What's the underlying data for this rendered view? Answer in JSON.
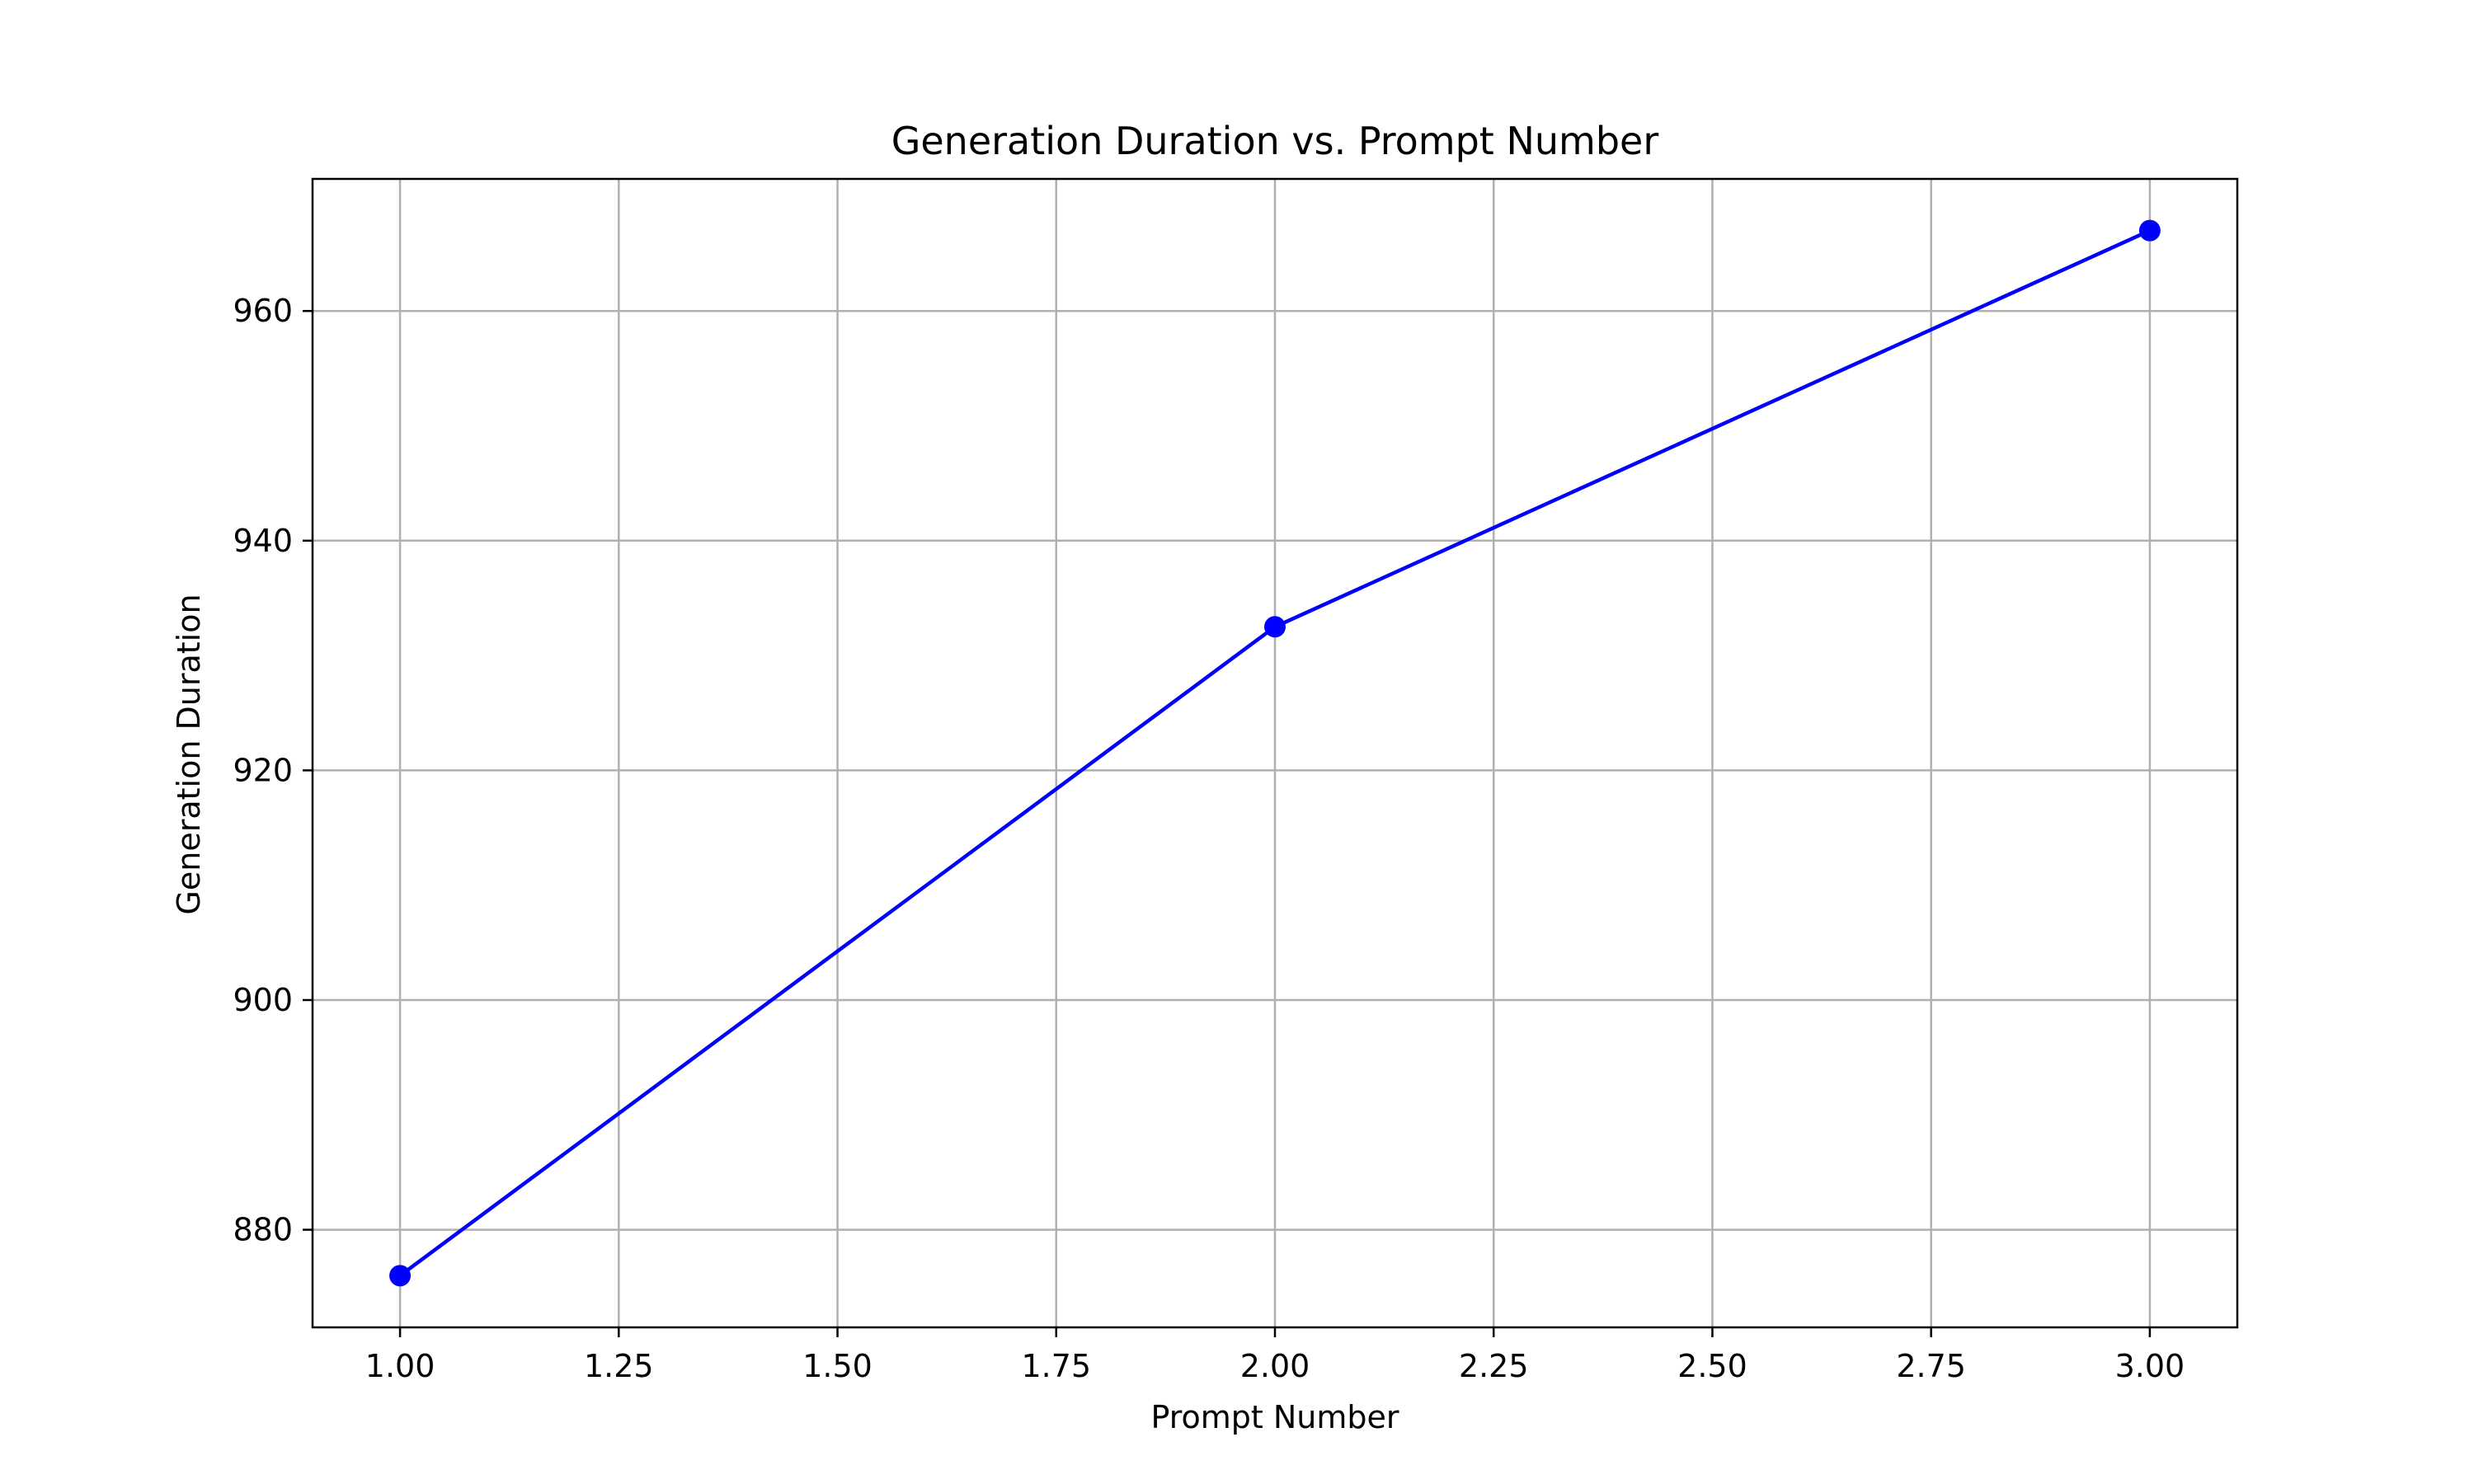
{
  "chart_data": {
    "type": "line",
    "title": "Generation Duration vs. Prompt Number",
    "xlabel": "Prompt Number",
    "ylabel": "Generation Duration",
    "x": [
      1.0,
      2.0,
      3.0
    ],
    "series": [
      {
        "values": [
          876.0,
          932.5,
          967.0
        ]
      }
    ],
    "xlim": [
      0.9,
      3.1
    ],
    "ylim": [
      871.5,
      971.5
    ],
    "xticks": [
      1.0,
      1.25,
      1.5,
      1.75,
      2.0,
      2.25,
      2.5,
      2.75,
      3.0
    ],
    "xtick_labels": [
      "1.00",
      "1.25",
      "1.50",
      "1.75",
      "2.00",
      "2.25",
      "2.50",
      "2.75",
      "3.00"
    ],
    "yticks": [
      880,
      900,
      920,
      940,
      960
    ],
    "ytick_labels": [
      "880",
      "900",
      "920",
      "940",
      "960"
    ],
    "grid": true,
    "line_color": "#0000ff",
    "marker": "circle",
    "grid_color": "#b0b0b0"
  }
}
